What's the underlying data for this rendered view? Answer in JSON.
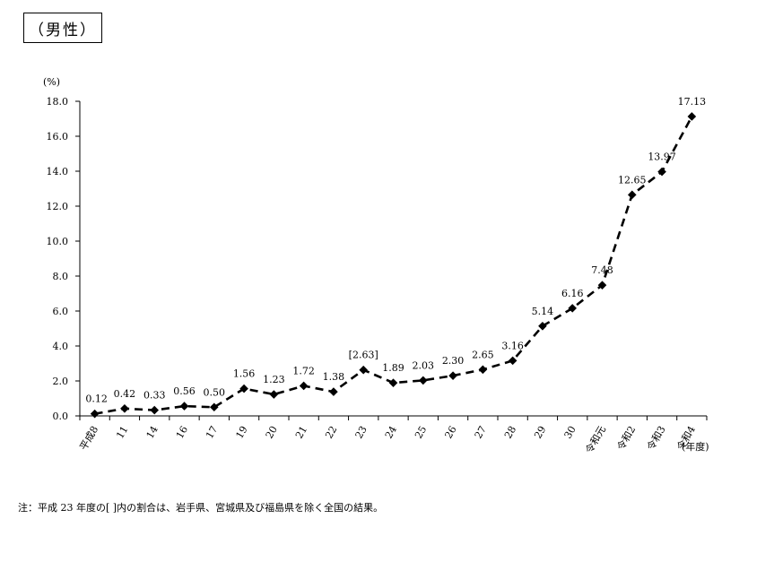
{
  "title_box": "（男性）",
  "note": "注：平成 23 年度の[ ]内の割合は、岩手県、宮城県及び福島県を除く全国の結果。",
  "chart_data": {
    "type": "line",
    "title": "",
    "ylabel": "(%)",
    "xlabel": "(年度)",
    "ylim": [
      0,
      18
    ],
    "yticks": [
      "0.0",
      "2.0",
      "4.0",
      "6.0",
      "8.0",
      "10.0",
      "12.0",
      "14.0",
      "16.0",
      "18.0"
    ],
    "grid": false,
    "line_style": "dashed",
    "marker": "diamond",
    "color": "#000000",
    "categories": [
      "平成8",
      "11",
      "14",
      "16",
      "17",
      "19",
      "20",
      "21",
      "22",
      "23",
      "24",
      "25",
      "26",
      "27",
      "28",
      "29",
      "30",
      "令和元",
      "令和2",
      "令和3",
      "令和4"
    ],
    "values": [
      0.12,
      0.42,
      0.33,
      0.56,
      0.5,
      1.56,
      1.23,
      1.72,
      1.38,
      2.63,
      1.89,
      2.03,
      2.3,
      2.65,
      3.16,
      5.14,
      6.16,
      7.48,
      12.65,
      13.97,
      17.13
    ],
    "data_labels": [
      "0.12",
      "0.42",
      "0.33",
      "0.56",
      "0.50",
      "1.56",
      "1.23",
      "1.72",
      "1.38",
      "[2.63]",
      "1.89",
      "2.03",
      "2.30",
      "2.65",
      "3.16",
      "5.14",
      "6.16",
      "7.48",
      "12.65",
      "13.97",
      "17.13"
    ]
  }
}
